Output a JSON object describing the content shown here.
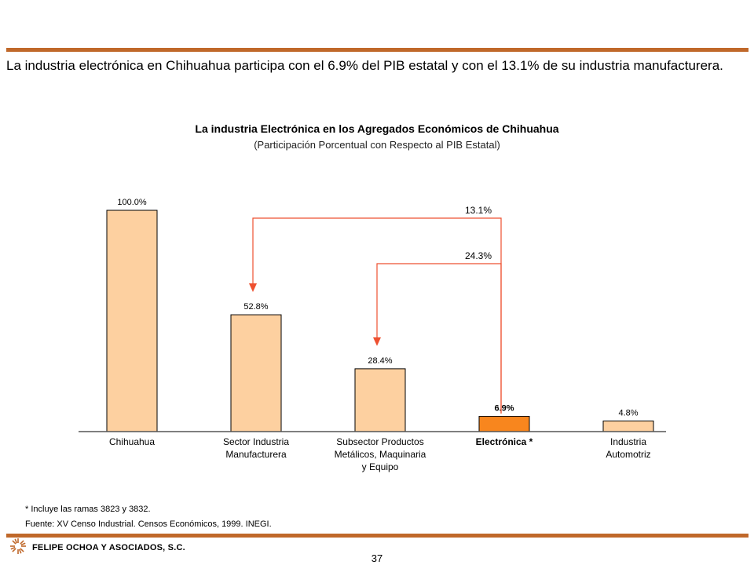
{
  "headline": "La industria electrónica en Chihuahua participa con el 6.9% del PIB estatal y con el 13.1% de su industria manufacturera.",
  "chart_data": {
    "type": "bar",
    "title": "La industria Electrónica en los Agregados Económicos de Chihuahua",
    "subtitle": "(Participación Porcentual con Respecto al PIB Estatal)",
    "categories": [
      "Chihuahua",
      "Sector Industria Manufacturera",
      "Subsector Productos Metálicos, Maquinaria y Equipo",
      "Electrónica *",
      "Industria Automotriz"
    ],
    "category_lines": [
      [
        "Chihuahua"
      ],
      [
        "Sector Industria",
        "Manufacturera"
      ],
      [
        "Subsector Productos",
        "Metálicos, Maquinaria",
        "y Equipo"
      ],
      [
        "Electrónica *"
      ],
      [
        "Industria",
        "Automotriz"
      ]
    ],
    "values": [
      100.0,
      52.8,
      28.4,
      6.9,
      4.8
    ],
    "value_labels": [
      "100.0%",
      "52.8%",
      "28.4%",
      "6.9%",
      "4.8%"
    ],
    "highlight_index": 3,
    "ylim": [
      0,
      100
    ],
    "grid": false,
    "annotations": [
      {
        "label": "13.1%",
        "from": "Electrónica *",
        "to": "Sector Industria Manufacturera"
      },
      {
        "label": "24.3%",
        "from": "Electrónica *",
        "to": "Subsector Productos Metálicos, Maquinaria y Equipo"
      }
    ],
    "colors": {
      "bar": "#fdd0a0",
      "bar_highlight": "#f8861e",
      "arrow": "#ee5030",
      "axis": "#555555"
    }
  },
  "notes": {
    "footnote": "* Incluye las ramas 3823 y 3832.",
    "source": "Fuente: XV Censo Industrial. Censos Económicos, 1999. INEGI."
  },
  "footer": {
    "company": "FELIPE OCHOA Y ASOCIADOS, S.C.",
    "page": "37",
    "logo_icon": "sunburst-logo-icon"
  },
  "colors": {
    "rule": "#c0682a"
  }
}
